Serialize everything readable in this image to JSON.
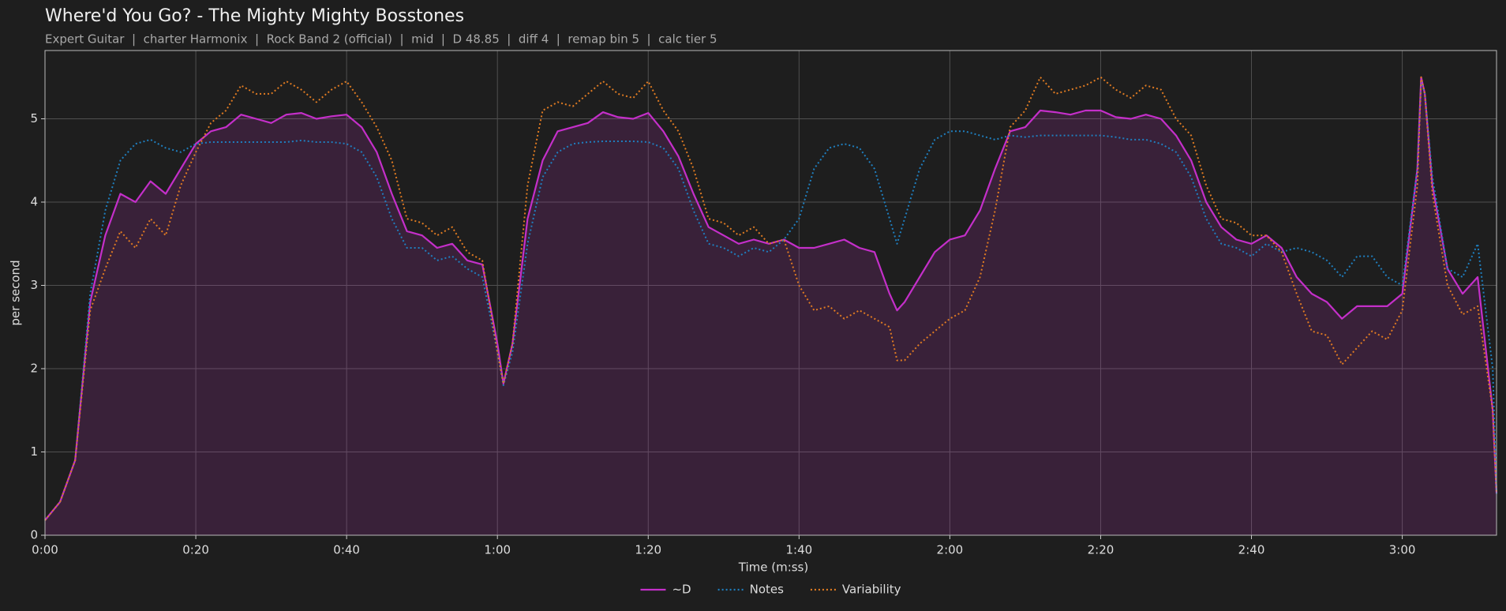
{
  "chart_data": {
    "type": "line",
    "title": "Where'd You Go? - The Mighty Mighty Bosstones",
    "subtitle": "Expert Guitar  |  charter Harmonix  |  Rock Band 2 (official)  |  mid  |  D 48.85  |  diff 4  |  remap bin 5  |  calc tier 5",
    "x_label": "Time (m:ss)",
    "y_label": "per second",
    "x": [
      0,
      2,
      4,
      6,
      8,
      10,
      12,
      14,
      16,
      18,
      20,
      22,
      24,
      26,
      28,
      30,
      32,
      34,
      36,
      38,
      40,
      42,
      44,
      46,
      48,
      50,
      52,
      54,
      56,
      58,
      60,
      60.8,
      62,
      64,
      66,
      68,
      70,
      72,
      74,
      76,
      78,
      80,
      82,
      84,
      86,
      88,
      90,
      92,
      94,
      96,
      98,
      100,
      102,
      104,
      106,
      108,
      110,
      112,
      113,
      114,
      116,
      118,
      120,
      122,
      124,
      126,
      128,
      130,
      132,
      134,
      136,
      138,
      140,
      142,
      144,
      146,
      148,
      150,
      152,
      154,
      156,
      158,
      160,
      162,
      164,
      166,
      168,
      170,
      172,
      174,
      176,
      178,
      180,
      182,
      182.5,
      183,
      184,
      186,
      188,
      190,
      192,
      192.5
    ],
    "series": [
      {
        "name": "~D",
        "color": "#c42fc9",
        "dash": "solid",
        "fill_under": true,
        "values": [
          0.18,
          0.4,
          0.9,
          2.8,
          3.6,
          4.1,
          4.0,
          4.25,
          4.1,
          4.4,
          4.7,
          4.85,
          4.9,
          5.05,
          5.0,
          4.95,
          5.05,
          5.07,
          5.0,
          5.03,
          5.05,
          4.9,
          4.6,
          4.1,
          3.65,
          3.6,
          3.45,
          3.5,
          3.3,
          3.25,
          2.3,
          1.82,
          2.3,
          3.8,
          4.5,
          4.85,
          4.9,
          4.95,
          5.08,
          5.02,
          5.0,
          5.07,
          4.85,
          4.55,
          4.1,
          3.7,
          3.6,
          3.5,
          3.55,
          3.5,
          3.55,
          3.45,
          3.45,
          3.5,
          3.55,
          3.45,
          3.4,
          2.9,
          2.7,
          2.8,
          3.1,
          3.4,
          3.55,
          3.6,
          3.9,
          4.4,
          4.85,
          4.9,
          5.1,
          5.08,
          5.05,
          5.1,
          5.1,
          5.02,
          5.0,
          5.05,
          5.0,
          4.8,
          4.5,
          4.0,
          3.7,
          3.55,
          3.5,
          3.6,
          3.45,
          3.1,
          2.9,
          2.8,
          2.6,
          2.75,
          2.75,
          2.75,
          2.9,
          4.4,
          5.5,
          5.3,
          4.2,
          3.2,
          2.9,
          3.1,
          1.5,
          0.5
        ]
      },
      {
        "name": "Notes",
        "color": "#1f7fbf",
        "dash": "dotted",
        "values": [
          0.18,
          0.4,
          0.9,
          2.9,
          3.9,
          4.5,
          4.7,
          4.75,
          4.65,
          4.6,
          4.7,
          4.72,
          4.72,
          4.72,
          4.72,
          4.72,
          4.72,
          4.74,
          4.72,
          4.72,
          4.7,
          4.6,
          4.3,
          3.8,
          3.45,
          3.45,
          3.3,
          3.35,
          3.2,
          3.1,
          2.2,
          1.8,
          2.2,
          3.5,
          4.3,
          4.6,
          4.7,
          4.72,
          4.73,
          4.73,
          4.73,
          4.72,
          4.65,
          4.4,
          3.9,
          3.5,
          3.45,
          3.35,
          3.45,
          3.4,
          3.55,
          3.8,
          4.4,
          4.65,
          4.7,
          4.65,
          4.4,
          3.8,
          3.5,
          3.8,
          4.4,
          4.75,
          4.85,
          4.85,
          4.8,
          4.75,
          4.8,
          4.78,
          4.8,
          4.8,
          4.8,
          4.8,
          4.8,
          4.78,
          4.75,
          4.75,
          4.7,
          4.6,
          4.3,
          3.8,
          3.5,
          3.45,
          3.35,
          3.5,
          3.4,
          3.45,
          3.4,
          3.3,
          3.1,
          3.35,
          3.35,
          3.1,
          3.0,
          4.4,
          5.45,
          5.3,
          4.3,
          3.2,
          3.1,
          3.5,
          2.0,
          0.5
        ]
      },
      {
        "name": "Variability",
        "color": "#e07b22",
        "dash": "dotted",
        "values": [
          0.18,
          0.4,
          0.9,
          2.7,
          3.2,
          3.65,
          3.45,
          3.8,
          3.6,
          4.2,
          4.6,
          4.95,
          5.1,
          5.4,
          5.3,
          5.3,
          5.45,
          5.35,
          5.2,
          5.35,
          5.45,
          5.2,
          4.9,
          4.5,
          3.8,
          3.75,
          3.6,
          3.7,
          3.4,
          3.3,
          2.2,
          1.82,
          2.3,
          4.2,
          5.1,
          5.2,
          5.15,
          5.3,
          5.45,
          5.3,
          5.25,
          5.45,
          5.1,
          4.85,
          4.4,
          3.8,
          3.75,
          3.6,
          3.7,
          3.5,
          3.55,
          3.0,
          2.7,
          2.75,
          2.6,
          2.7,
          2.6,
          2.5,
          2.1,
          2.1,
          2.3,
          2.45,
          2.6,
          2.7,
          3.1,
          3.9,
          4.9,
          5.1,
          5.5,
          5.3,
          5.35,
          5.4,
          5.5,
          5.35,
          5.25,
          5.4,
          5.35,
          5.0,
          4.8,
          4.2,
          3.8,
          3.75,
          3.6,
          3.6,
          3.4,
          2.9,
          2.45,
          2.4,
          2.05,
          2.25,
          2.45,
          2.35,
          2.7,
          4.2,
          5.5,
          5.3,
          4.1,
          3.0,
          2.65,
          2.75,
          1.5,
          0.5
        ]
      }
    ],
    "xlim": [
      0,
      192.5
    ],
    "ylim": [
      0,
      5.82
    ],
    "xticks": [
      {
        "value": 0,
        "label": "0:00"
      },
      {
        "value": 20,
        "label": "0:20"
      },
      {
        "value": 40,
        "label": "0:40"
      },
      {
        "value": 60,
        "label": "1:00"
      },
      {
        "value": 80,
        "label": "1:20"
      },
      {
        "value": 100,
        "label": "1:40"
      },
      {
        "value": 120,
        "label": "2:00"
      },
      {
        "value": 140,
        "label": "2:20"
      },
      {
        "value": 160,
        "label": "2:40"
      },
      {
        "value": 180,
        "label": "3:00"
      }
    ],
    "yticks": [
      0,
      1,
      2,
      3,
      4,
      5
    ],
    "grid": true,
    "legend": "bottom"
  }
}
